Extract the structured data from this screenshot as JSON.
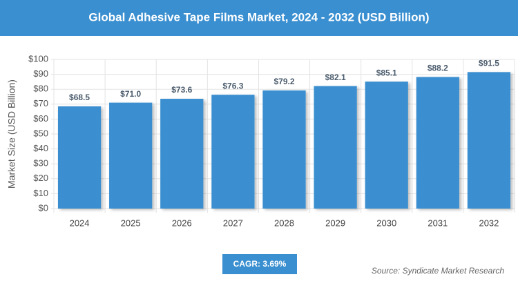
{
  "chart_data": {
    "type": "bar",
    "title": "Global Adhesive Tape Films Market, 2024 - 2032 (USD Billion)",
    "y_label": "Market Size (USD Billion)",
    "categories": [
      "2024",
      "2025",
      "2026",
      "2027",
      "2028",
      "2029",
      "2030",
      "2031",
      "2032"
    ],
    "values": [
      68.5,
      71.0,
      73.6,
      76.3,
      79.2,
      82.1,
      85.1,
      88.2,
      91.5
    ],
    "value_labels": [
      "$68.5",
      "$71.0",
      "$73.6",
      "$76.3",
      "$79.2",
      "$82.1",
      "$85.1",
      "$88.2",
      "$91.5"
    ],
    "color": "#3a8fd0",
    "ylim": [
      0,
      100
    ],
    "yticks": [
      {
        "value": 0,
        "label": "$0"
      },
      {
        "value": 10,
        "label": "$10"
      },
      {
        "value": 20,
        "label": "$20"
      },
      {
        "value": 30,
        "label": "$30"
      },
      {
        "value": 40,
        "label": "$40"
      },
      {
        "value": 50,
        "label": "$50"
      },
      {
        "value": 60,
        "label": "$60"
      },
      {
        "value": 70,
        "label": "$70"
      },
      {
        "value": 80,
        "label": "$80"
      },
      {
        "value": 90,
        "label": "$90"
      },
      {
        "value": 100,
        "label": "$100"
      }
    ],
    "grid": true,
    "cagr": "CAGR: 3.69%",
    "source": "Source: Syndicate Market Research"
  }
}
